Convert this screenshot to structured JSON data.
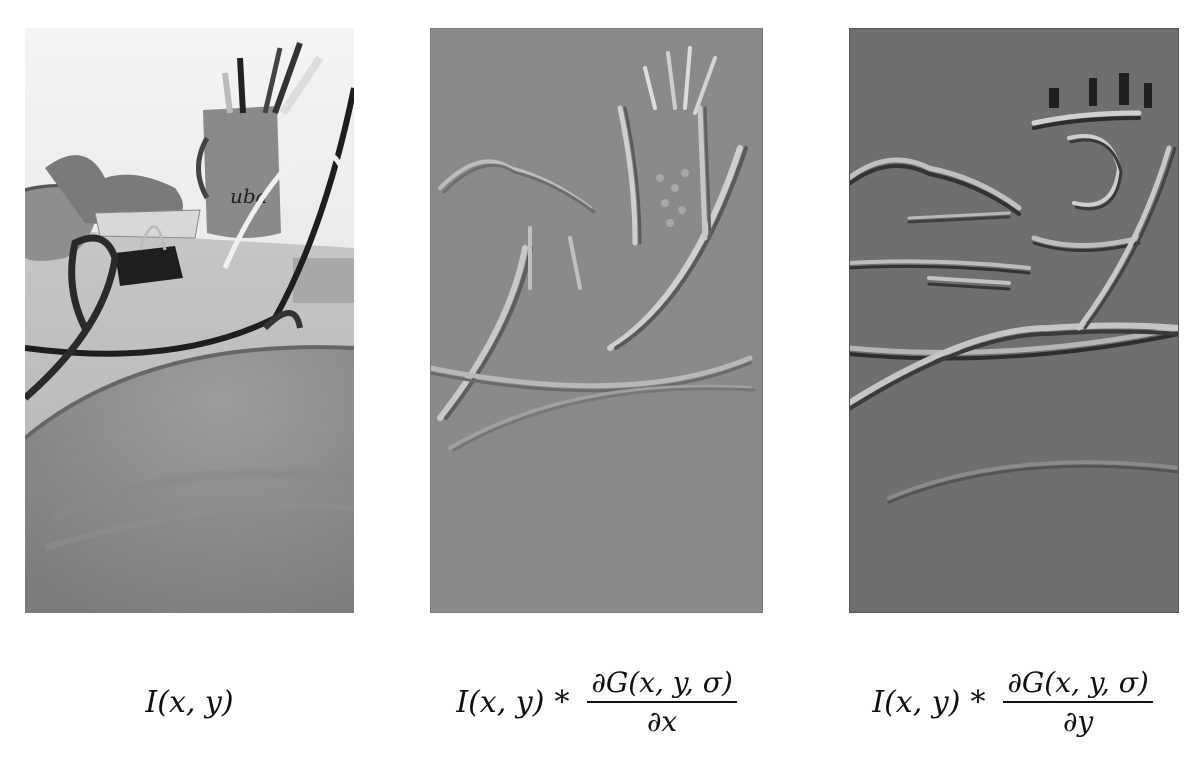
{
  "panels": [
    {
      "id": "original",
      "caption": {
        "text": "I(x, y)"
      }
    },
    {
      "id": "dx",
      "caption": {
        "prefix": "I(x, y)",
        "operator": "*",
        "numerator": "∂G(x, y, σ)",
        "denominator": "∂x"
      }
    },
    {
      "id": "dy",
      "caption": {
        "prefix": "I(x, y)",
        "operator": "*",
        "numerator": "∂G(x, y, σ)",
        "denominator": "∂y"
      }
    }
  ],
  "colors": {
    "background": "#ffffff",
    "gradient_gray": "#888888",
    "dark_gray": "#6b6b6b"
  }
}
